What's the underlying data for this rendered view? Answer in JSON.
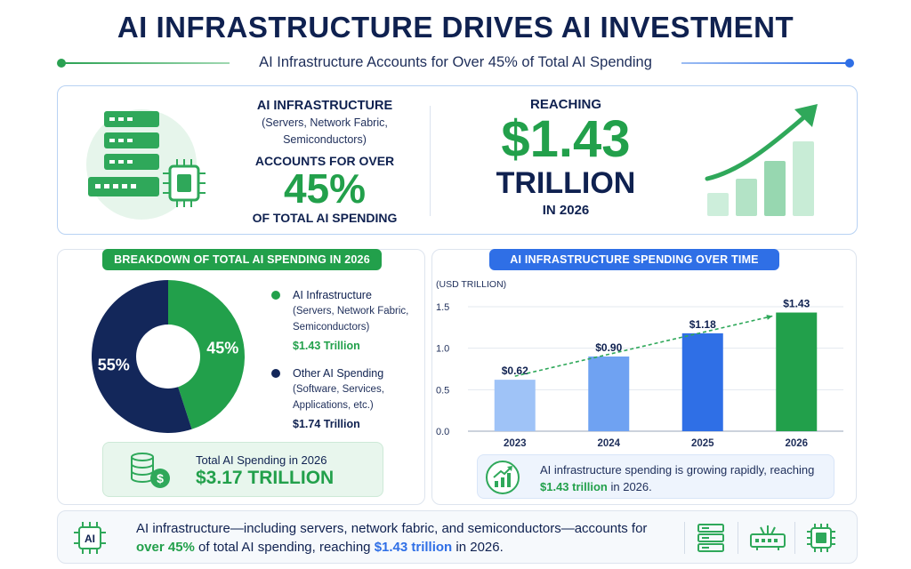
{
  "header": {
    "title": "AI INFRASTRUCTURE DRIVES AI INVESTMENT",
    "subtitle": "AI Infrastructure Accounts for Over 45% of Total AI Spending"
  },
  "top_panel": {
    "heading": "AI INFRASTRUCTURE",
    "components": "(Servers, Network Fabric, Semiconductors)",
    "accounts_for": "ACCOUNTS FOR OVER",
    "percent": "45%",
    "of_total": "OF TOTAL AI SPENDING",
    "reaching": "REACHING",
    "amount": "$1.43",
    "unit": "TRILLION",
    "year": "IN 2026"
  },
  "breakdown": {
    "title": "BREAKDOWN OF TOTAL AI SPENDING IN 2026",
    "slices": [
      {
        "label": "AI Infrastructure",
        "detail": "(Servers, Network Fabric, Semiconductors)",
        "value_text": "$1.43 Trillion",
        "percent": 45,
        "percent_label": "45%",
        "color": "#22a04b"
      },
      {
        "label": "Other AI Spending",
        "detail": "(Software, Services, Applications, etc.)",
        "value_text": "$1.74 Trillion",
        "percent": 55,
        "percent_label": "55%",
        "color": "#13275a"
      }
    ],
    "total_label": "Total AI Spending in 2026",
    "total_value": "$3.17 TRILLION"
  },
  "chart_data": {
    "type": "bar",
    "title": "AI INFRASTRUCTURE SPENDING OVER TIME",
    "ylabel": "(USD TRILLION)",
    "categories": [
      "2023",
      "2024",
      "2025",
      "2026"
    ],
    "values": [
      0.62,
      0.9,
      1.18,
      1.43
    ],
    "data_labels": [
      "$0.62",
      "$0.90",
      "$1.18",
      "$1.43"
    ],
    "colors": [
      "#9fc3f7",
      "#6fa2f2",
      "#2f6fe6",
      "#22a04b"
    ],
    "yticks": [
      "0.0",
      "0.5",
      "1.0",
      "1.5"
    ],
    "ytick_values": [
      0,
      0.5,
      1.0,
      1.5
    ],
    "ylim": [
      0,
      1.5
    ],
    "trend_line": true,
    "grid": true
  },
  "chart_note": {
    "before": "AI infrastructure spending is growing rapidly, reaching ",
    "highlight": "$1.43 trillion",
    "after": " in 2026."
  },
  "bottom": {
    "icon_text": "AI",
    "text_1": "AI infrastructure—including servers, network fabric, and semiconductors—accounts for ",
    "highlight_1": "over 45%",
    "text_2": " of total AI spending, reaching ",
    "highlight_2": "$1.43 trillion",
    "text_3": " in 2026."
  },
  "icons": [
    "server-rack-icon",
    "chip-icon",
    "growth-chart-icon",
    "coins-icon",
    "dollar-icon",
    "trend-up-icon",
    "ai-chip-icon",
    "server-icon",
    "network-switch-icon",
    "semiconductor-icon"
  ],
  "colors": {
    "navy": "#0f2150",
    "green": "#22a04b",
    "blue": "#2f6fe6",
    "light_green": "#e8f6ed",
    "light_blue": "#eef4fd"
  }
}
